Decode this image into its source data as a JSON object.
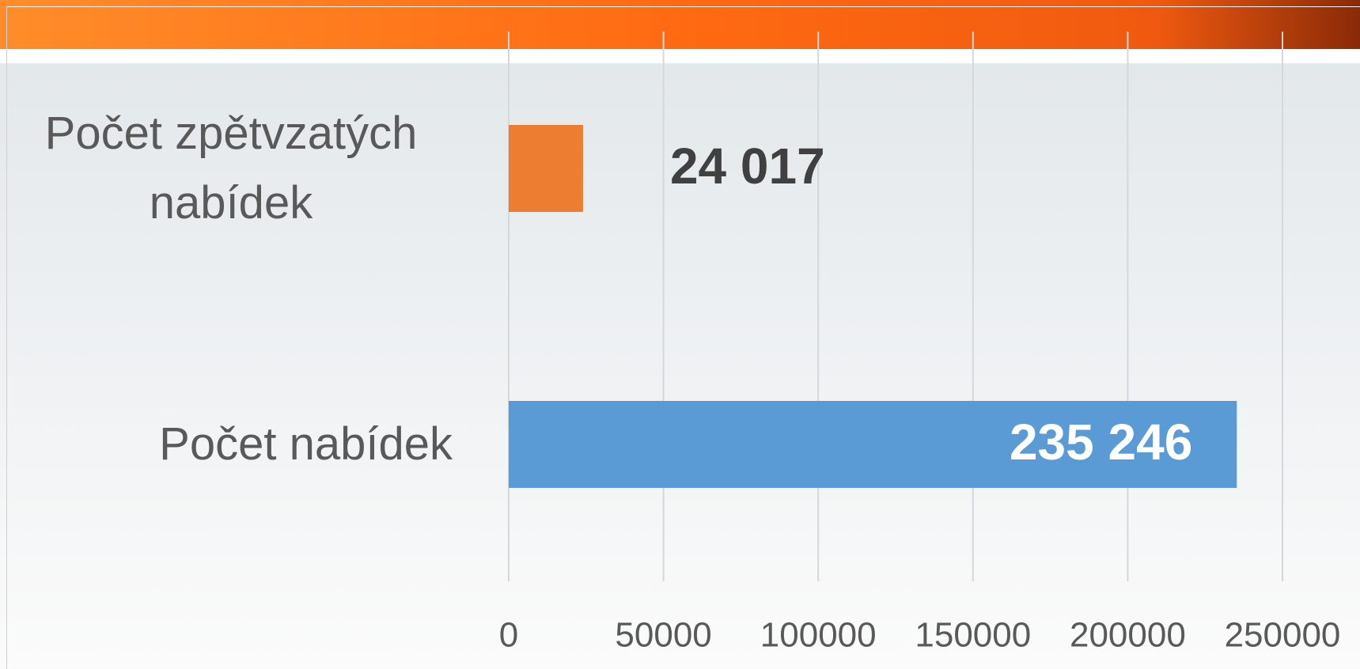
{
  "chart_data": {
    "type": "bar",
    "orientation": "horizontal",
    "categories": [
      "Počet zpětvzatých nabídek",
      "Počet nabídek"
    ],
    "values": [
      24017,
      235246
    ],
    "value_labels": [
      "24 017",
      "235 246"
    ],
    "colors": [
      "#ed7d31",
      "#5b9bd5"
    ],
    "xlim": [
      0,
      250000
    ],
    "xticks": [
      0,
      50000,
      100000,
      150000,
      200000,
      250000
    ],
    "grid": true
  }
}
